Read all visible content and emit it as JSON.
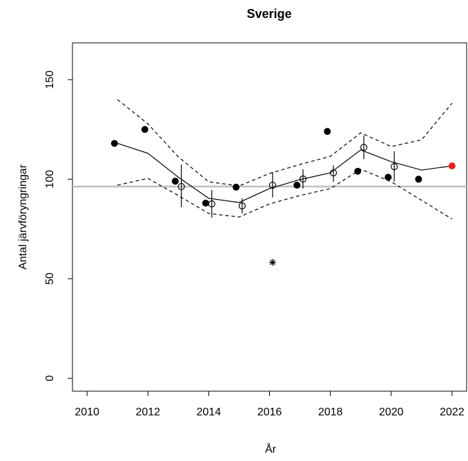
{
  "chart_data": {
    "type": "line",
    "title": "Sverige",
    "x_label": "År",
    "y_label": "Antal järvföryngringar",
    "xlim": [
      2009.52,
      2022.48
    ],
    "ylim": [
      -6.5,
      168.5
    ],
    "xticks": [
      2010,
      2012,
      2014,
      2016,
      2018,
      2020,
      2022
    ],
    "yticks": [
      0,
      50,
      100,
      150
    ],
    "reference": {
      "value": 96.3,
      "color": "#bebebe"
    },
    "trend": {
      "x": [
        2011,
        2012,
        2013,
        2014,
        2015,
        2016,
        2017,
        2018,
        2019,
        2020,
        2021,
        2022
      ],
      "values": [
        118,
        113,
        101,
        90.4,
        88.3,
        95.3,
        99.8,
        103.2,
        114.7,
        108.8,
        104.6,
        106.7
      ],
      "color": "#000000"
    },
    "upper": {
      "x": [
        2011,
        2012,
        2013,
        2014,
        2015,
        2016,
        2017,
        2018,
        2019,
        2020,
        2021,
        2022
      ],
      "values": [
        140,
        127.8,
        111.2,
        98.7,
        96.6,
        102.9,
        107.4,
        111.5,
        123.3,
        116.4,
        119.8,
        138.2
      ],
      "color": "#000000"
    },
    "lower": {
      "x": [
        2011,
        2012,
        2013,
        2014,
        2015,
        2016,
        2017,
        2018,
        2019,
        2020,
        2021,
        2022
      ],
      "values": [
        97,
        100.4,
        91.8,
        82.8,
        81,
        87.6,
        91.8,
        95.3,
        105,
        98.7,
        89.4,
        80
      ],
      "color": "#000000"
    },
    "observed": {
      "x": [
        2010.9,
        2011.9,
        2012.9,
        2013.9,
        2014.9,
        2016.9,
        2017.9,
        2018.9,
        2019.9,
        2020.9
      ],
      "values": [
        118,
        125,
        99,
        88,
        96,
        97,
        124,
        104,
        101,
        100
      ],
      "color": "#000000"
    },
    "estimates": {
      "x": [
        2013.1,
        2014.1,
        2015.1,
        2016.1,
        2017.1,
        2018.1,
        2019.1,
        2020.1
      ],
      "values": [
        96.3,
        87.6,
        86.6,
        97,
        100.1,
        103.2,
        116,
        106.3
      ],
      "lower": [
        85.9,
        80.7,
        82.8,
        90.8,
        95.3,
        98.7,
        110.1,
        98.7
      ],
      "upper": [
        107.4,
        94.6,
        90.4,
        103.6,
        105,
        107,
        121.9,
        114
      ],
      "color": "#000000"
    },
    "outlier": {
      "x": 2016.1,
      "value": 58.2,
      "color": "#000000"
    },
    "current": {
      "x": 2022,
      "value": 106.7,
      "color": "#e8211f"
    }
  }
}
